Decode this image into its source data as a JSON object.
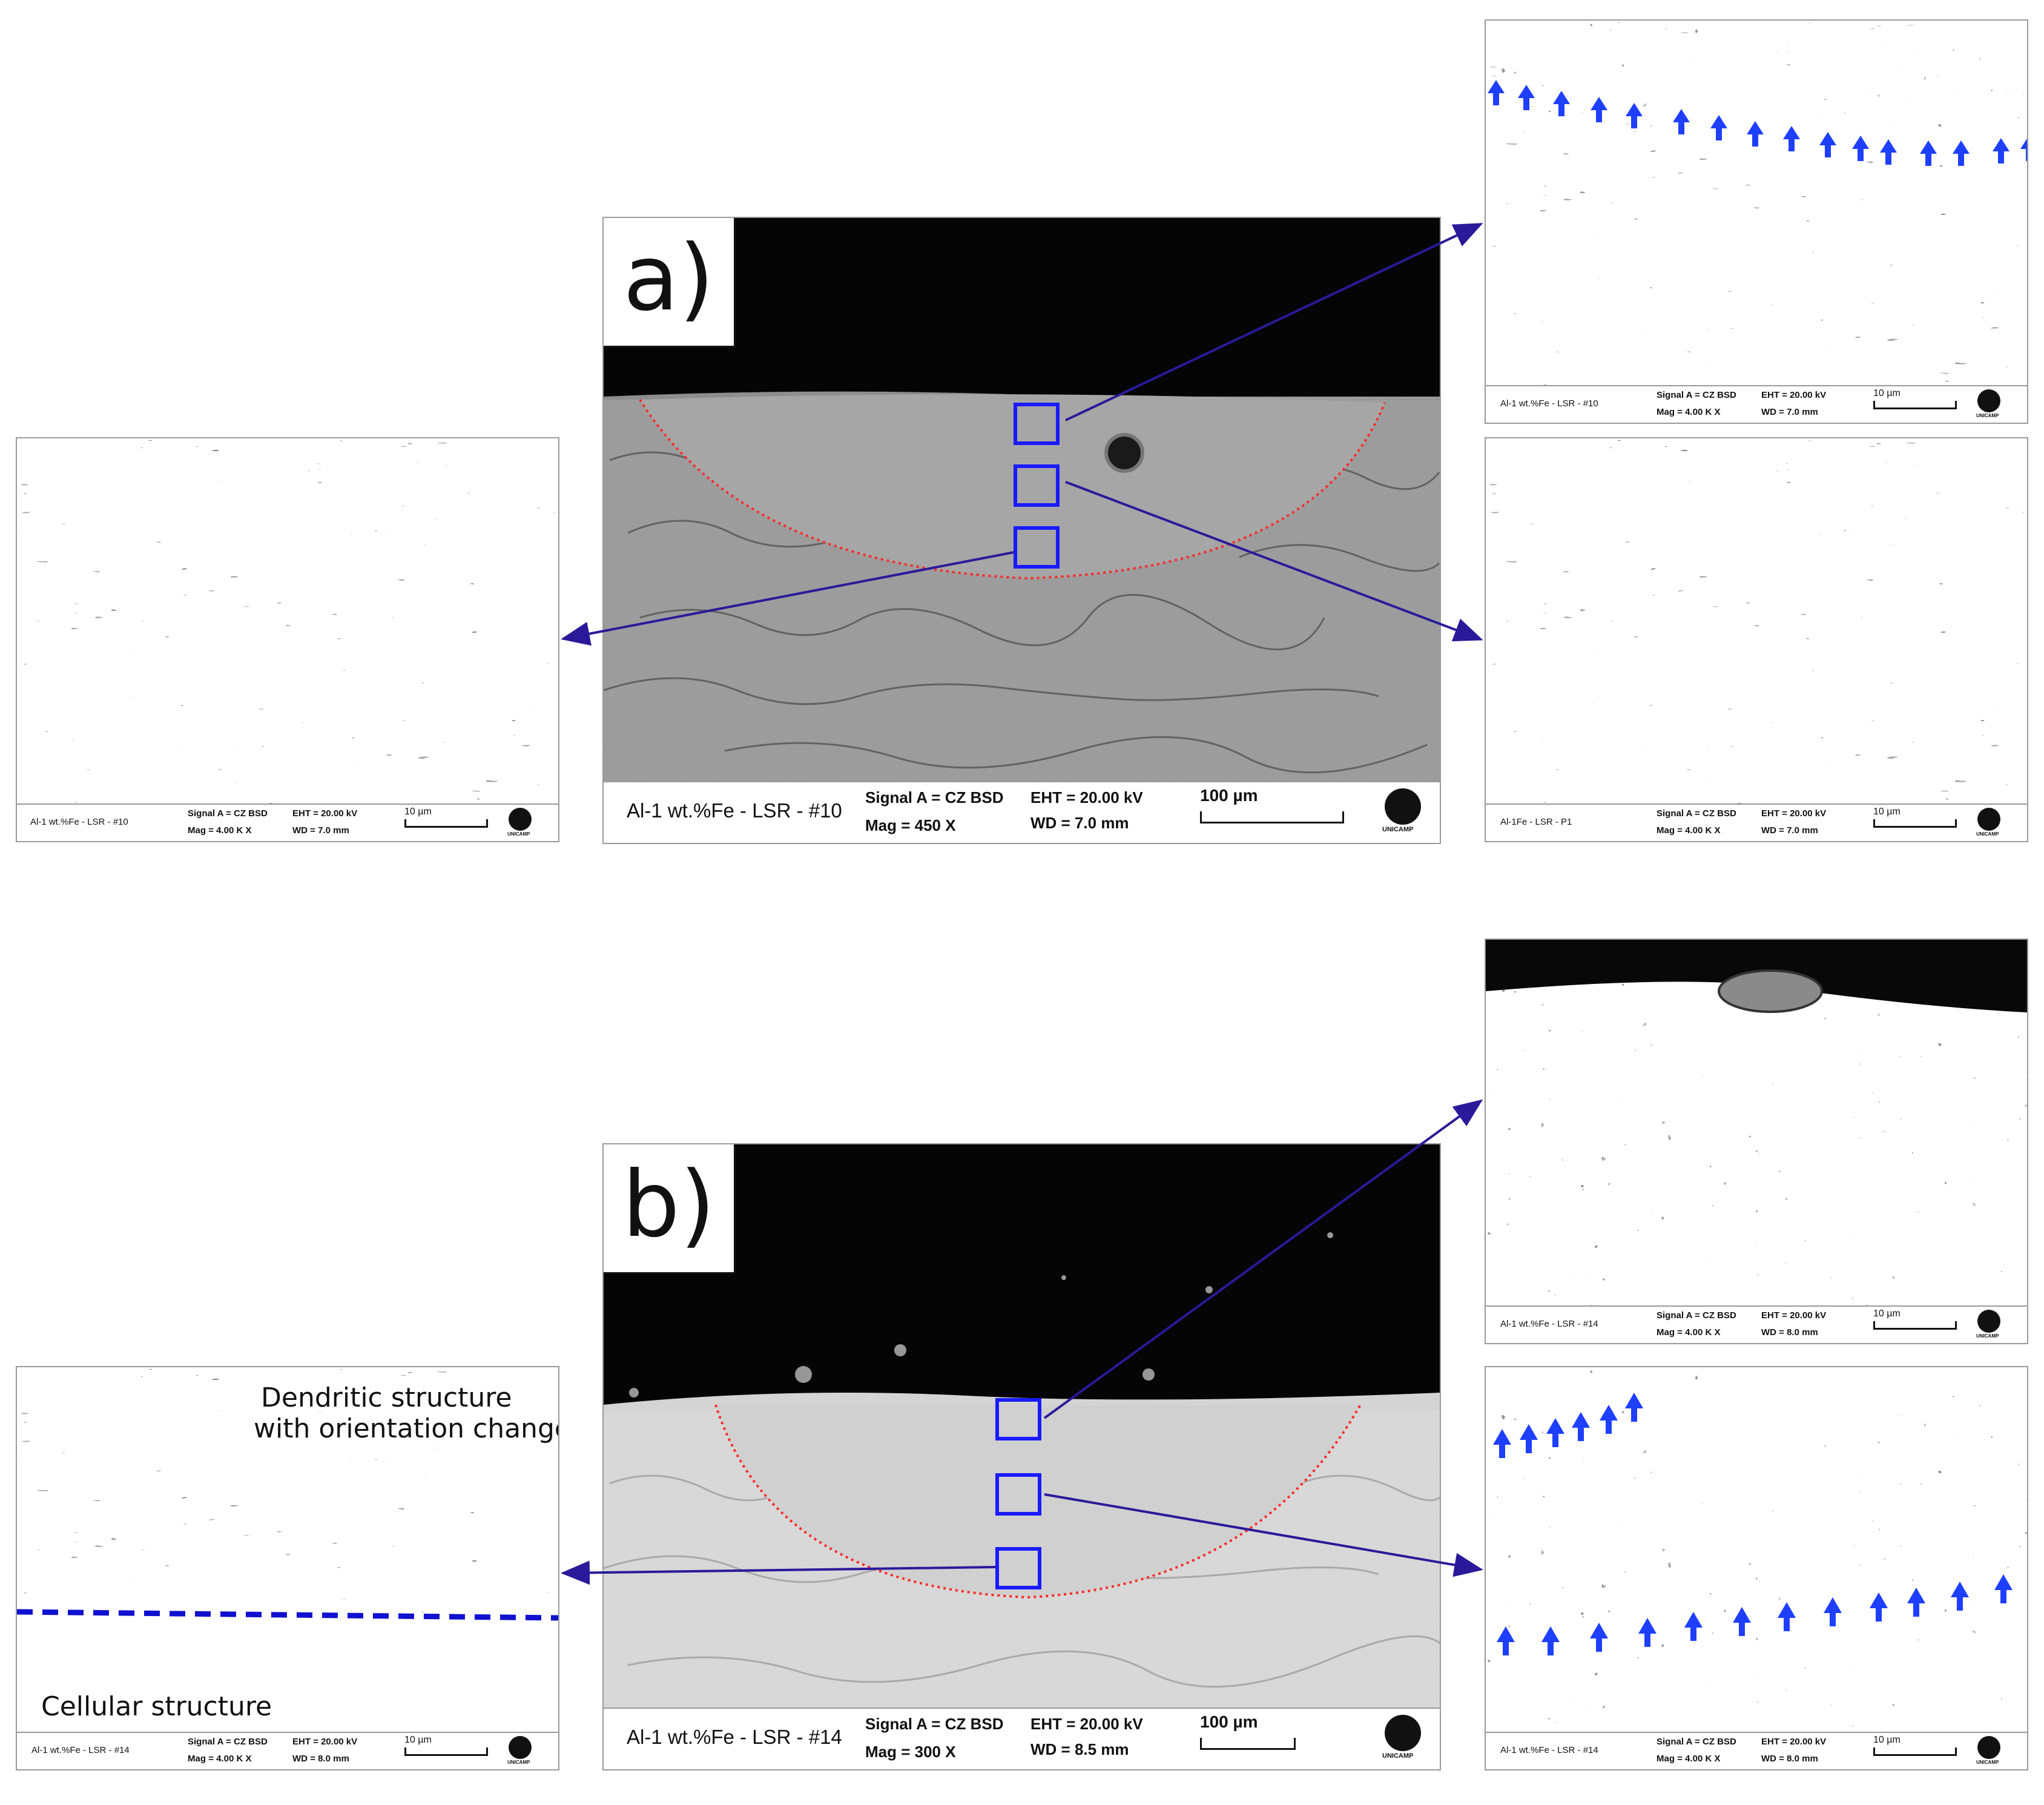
{
  "colors": {
    "zone_boundary": "#ff2a2a",
    "roi_box": "#1a1aff",
    "connector": "#2a1a9a",
    "growth_arrow": "#1f3fff",
    "interface_line": "#1010d0"
  },
  "panels": {
    "a_main": {
      "label": "a)",
      "sample": "Al-1 wt.%Fe - LSR - #10",
      "signal": "Signal A = CZ BSD",
      "eht": "EHT = 20.00 kV",
      "mag": "Mag =    450 X",
      "wd": "WD =  7.0 mm",
      "scale": "100 µm",
      "logo_text": "UNICAMP"
    },
    "a_left": {
      "sample": "Al-1 wt.%Fe - LSR - #10",
      "signal": "Signal A = CZ BSD",
      "eht": "EHT = 20.00 kV",
      "mag": "Mag =   4.00 K X",
      "wd": "WD = 7.0 mm",
      "scale": "10 µm",
      "logo_text": "UNICAMP"
    },
    "a_top_right": {
      "sample": "Al-1 wt.%Fe - LSR - #10",
      "signal": "Signal A = CZ BSD",
      "eht": "EHT = 20.00 kV",
      "mag": "Mag =   4.00 K X",
      "wd": "WD = 7.0 mm",
      "scale": "10 µm",
      "logo_text": "UNICAMP"
    },
    "a_bottom_right": {
      "sample": "Al-1Fe - LSR - P1",
      "signal": "Signal A = CZ BSD",
      "eht": "EHT = 20.00 kV",
      "mag": "Mag =   4.00 K X",
      "wd": "WD = 7.0 mm",
      "scale": "10 µm",
      "logo_text": "UNICAMP"
    },
    "b_main": {
      "label": "b)",
      "sample": "Al-1 wt.%Fe - LSR - #14",
      "signal": "Signal A = CZ BSD",
      "eht": "EHT = 20.00 kV",
      "mag": "Mag =    300 X",
      "wd": "WD =  8.5 mm",
      "scale": "100 µm",
      "logo_text": "UNICAMP"
    },
    "b_left": {
      "sample": "Al-1 wt.%Fe - LSR - #14",
      "signal": "Signal A = CZ BSD",
      "eht": "EHT = 20.00 kV",
      "mag": "Mag =   4.00 K X",
      "wd": "WD = 8.0 mm",
      "scale": "10 µm",
      "logo_text": "UNICAMP",
      "annotation_top_1": "Dendritic structure",
      "annotation_top_2": "with orientation change",
      "annotation_bottom": "Cellular structure"
    },
    "b_top_right": {
      "sample": "Al-1 wt.%Fe - LSR - #14",
      "signal": "Signal A = CZ BSD",
      "eht": "EHT = 20.00 kV",
      "mag": "Mag =   4.00 K X",
      "wd": "WD = 8.0 mm",
      "scale": "10 µm",
      "logo_text": "UNICAMP"
    },
    "b_bottom_right": {
      "sample": "Al-1 wt.%Fe - LSR - #14",
      "signal": "Signal A = CZ BSD",
      "eht": "EHT = 20.00 kV",
      "mag": "Mag =   4.00 K X",
      "wd": "WD = 8.0 mm",
      "scale": "10 µm",
      "logo_text": "UNICAMP"
    }
  }
}
